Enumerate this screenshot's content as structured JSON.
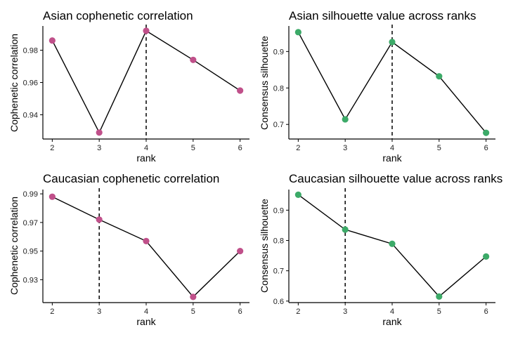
{
  "colors": {
    "cophenetic_point": "#C0508A",
    "silhouette_point": "#3CAA68"
  },
  "chart_data": [
    {
      "type": "line",
      "title": "Asian cophenetic correlation",
      "xlabel": "rank",
      "ylabel": "Cophenetic correlation",
      "x": [
        2,
        3,
        4,
        5,
        6
      ],
      "values": [
        0.986,
        0.929,
        0.992,
        0.974,
        0.955
      ],
      "xlim": [
        1.8,
        6.2
      ],
      "ylim": [
        0.925,
        0.995
      ],
      "yticks": [
        0.94,
        0.96,
        0.98
      ],
      "ytick_labels": [
        "0.94",
        "0.96",
        "0.98"
      ],
      "xticks": [
        2,
        3,
        4,
        5,
        6
      ],
      "xtick_labels": [
        "2",
        "3",
        "4",
        "5",
        "6"
      ],
      "vline_x": 4,
      "point_color": "#C0508A",
      "grid": false
    },
    {
      "type": "line",
      "title": "Asian silhouette value across ranks",
      "xlabel": "rank",
      "ylabel": "Consensus silhouette",
      "x": [
        2,
        3,
        4,
        5,
        6
      ],
      "values": [
        0.953,
        0.714,
        0.926,
        0.832,
        0.677
      ],
      "xlim": [
        1.8,
        6.2
      ],
      "ylim": [
        0.66,
        0.97
      ],
      "yticks": [
        0.7,
        0.8,
        0.9
      ],
      "ytick_labels": [
        "0.7",
        "0.8",
        "0.9"
      ],
      "xticks": [
        2,
        3,
        4,
        5,
        6
      ],
      "xtick_labels": [
        "2",
        "3",
        "4",
        "5",
        "6"
      ],
      "vline_x": 4,
      "point_color": "#3CAA68",
      "grid": false
    },
    {
      "type": "line",
      "title": "Caucasian cophenetic correlation",
      "xlabel": "rank",
      "ylabel": "Cophenetic correlation",
      "x": [
        2,
        3,
        4,
        5,
        6
      ],
      "values": [
        0.988,
        0.972,
        0.957,
        0.918,
        0.95
      ],
      "xlim": [
        1.8,
        6.2
      ],
      "ylim": [
        0.914,
        0.993
      ],
      "yticks": [
        0.93,
        0.95,
        0.97,
        0.99
      ],
      "ytick_labels": [
        "0.93",
        "0.95",
        "0.97",
        "0.99"
      ],
      "xticks": [
        2,
        3,
        4,
        5,
        6
      ],
      "xtick_labels": [
        "2",
        "3",
        "4",
        "5",
        "6"
      ],
      "vline_x": 3,
      "point_color": "#C0508A",
      "grid": false
    },
    {
      "type": "line",
      "title": "Caucasian silhouette value across ranks",
      "xlabel": "rank",
      "ylabel": "Consensus silhouette",
      "x": [
        2,
        3,
        4,
        5,
        6
      ],
      "values": [
        0.951,
        0.836,
        0.789,
        0.615,
        0.747
      ],
      "xlim": [
        1.8,
        6.2
      ],
      "ylim": [
        0.595,
        0.968
      ],
      "yticks": [
        0.6,
        0.7,
        0.8,
        0.9
      ],
      "ytick_labels": [
        "0.6",
        "0.7",
        "0.8",
        "0.9"
      ],
      "xticks": [
        2,
        3,
        4,
        5,
        6
      ],
      "xtick_labels": [
        "2",
        "3",
        "4",
        "5",
        "6"
      ],
      "vline_x": 3,
      "point_color": "#3CAA68",
      "grid": false
    }
  ]
}
